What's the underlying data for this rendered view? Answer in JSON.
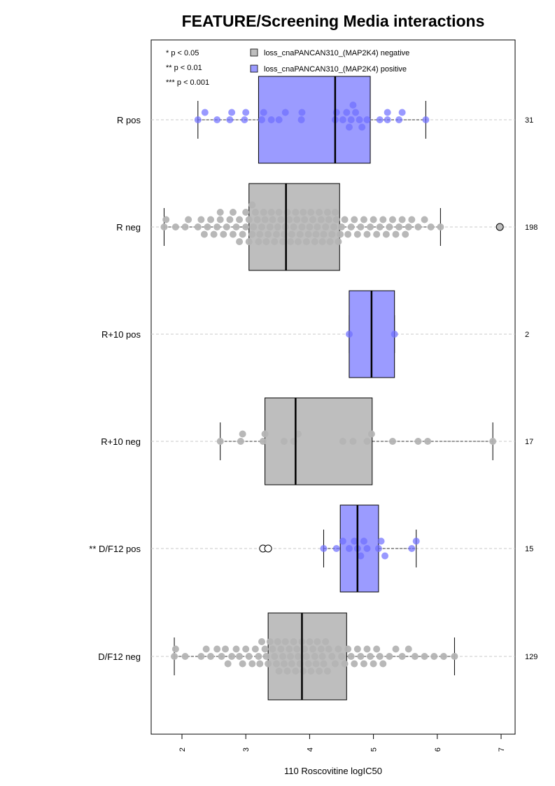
{
  "chart_data": {
    "type": "box",
    "title": "FEATURE/Screening Media interactions",
    "xlabel": "110 Roscovitine logIC50",
    "ylabel": "",
    "xlim": [
      1.5,
      7.2
    ],
    "xticks": [
      "2",
      "3",
      "4",
      "5",
      "6",
      "7"
    ],
    "significance_legend": [
      "* p < 0.05",
      "** p < 0.01",
      "*** p < 0.001"
    ],
    "legend": [
      {
        "label": "loss_cnaPANCAN310_(MAP2K4) negative",
        "color": "#bebebe"
      },
      {
        "label": "loss_cnaPANCAN310_(MAP2K4) positive",
        "color": "#9b9bff"
      }
    ],
    "colors": {
      "negative_box": "#bebebe",
      "positive_box": "#9b9bff",
      "negative_point": "#b4b4b4",
      "positive_point": "#6e6eff"
    },
    "groups": [
      {
        "label": "R pos",
        "n": "31",
        "status": "positive",
        "min": 2.25,
        "q1": 3.2,
        "median": 4.4,
        "q3": 4.95,
        "max": 5.82,
        "points": [
          2.25,
          2.36,
          2.55,
          2.75,
          2.78,
          2.98,
          3.0,
          3.25,
          3.28,
          3.4,
          3.52,
          3.62,
          3.87,
          3.88,
          4.4,
          4.42,
          4.52,
          4.58,
          4.62,
          4.65,
          4.68,
          4.72,
          4.78,
          4.82,
          4.9,
          5.1,
          5.22,
          5.22,
          5.4,
          5.45,
          5.82
        ]
      },
      {
        "label": "R neg",
        "n": "198",
        "status": "negative",
        "min": 1.72,
        "q1": 3.05,
        "median": 3.63,
        "q3": 4.47,
        "max": 6.05,
        "outliers": [
          6.98
        ],
        "points": [
          1.72,
          1.75,
          1.9,
          2.05,
          2.1,
          2.25,
          2.3,
          2.35,
          2.4,
          2.45,
          2.5,
          2.55,
          2.6,
          2.6,
          2.65,
          2.7,
          2.75,
          2.8,
          2.8,
          2.85,
          2.9,
          2.9,
          2.95,
          3.0,
          3.0,
          3.05,
          3.05,
          3.1,
          3.1,
          3.12,
          3.15,
          3.18,
          3.2,
          3.22,
          3.25,
          3.28,
          3.3,
          3.32,
          3.35,
          3.38,
          3.4,
          3.42,
          3.45,
          3.48,
          3.5,
          3.52,
          3.55,
          3.58,
          3.6,
          3.62,
          3.65,
          3.68,
          3.7,
          3.72,
          3.75,
          3.78,
          3.8,
          3.82,
          3.85,
          3.88,
          3.9,
          3.92,
          3.95,
          3.98,
          4.0,
          4.02,
          4.05,
          4.08,
          4.1,
          4.12,
          4.15,
          4.18,
          4.2,
          4.22,
          4.25,
          4.28,
          4.3,
          4.32,
          4.35,
          4.38,
          4.4,
          4.42,
          4.45,
          4.48,
          4.5,
          4.55,
          4.6,
          4.65,
          4.7,
          4.75,
          4.8,
          4.85,
          4.9,
          4.95,
          5.0,
          5.05,
          5.1,
          5.15,
          5.2,
          5.25,
          5.3,
          5.35,
          5.4,
          5.45,
          5.5,
          5.55,
          5.6,
          5.7,
          5.8,
          5.9,
          6.05
        ]
      },
      {
        "label": "R+10 pos",
        "n": "2",
        "status": "positive",
        "min": 4.62,
        "q1": 4.62,
        "median": 4.97,
        "q3": 5.33,
        "max": 5.33,
        "points": [
          4.62,
          5.33
        ]
      },
      {
        "label": "R+10 neg",
        "n": "17",
        "status": "negative",
        "min": 2.6,
        "q1": 3.3,
        "median": 3.78,
        "q3": 4.98,
        "max": 6.87,
        "points": [
          2.6,
          2.92,
          2.95,
          3.27,
          3.3,
          3.6,
          3.75,
          3.82,
          4.52,
          4.68,
          4.9,
          4.97,
          5.3,
          5.7,
          5.85,
          6.87
        ]
      },
      {
        "label": "** D/F12 pos",
        "n": "15",
        "status": "positive",
        "min": 4.22,
        "q1": 4.48,
        "median": 4.75,
        "q3": 5.08,
        "max": 5.67,
        "outliers": [
          3.27,
          3.35
        ],
        "points": [
          4.22,
          4.42,
          4.52,
          4.62,
          4.7,
          4.75,
          4.8,
          4.85,
          4.9,
          5.08,
          5.12,
          5.18,
          5.6,
          5.67
        ]
      },
      {
        "label": "D/F12 neg",
        "n": "129",
        "status": "negative",
        "min": 1.88,
        "q1": 3.35,
        "median": 3.88,
        "q3": 4.58,
        "max": 6.27,
        "points": [
          1.88,
          1.9,
          2.05,
          2.3,
          2.38,
          2.45,
          2.55,
          2.62,
          2.68,
          2.72,
          2.78,
          2.85,
          2.9,
          2.95,
          3.0,
          3.05,
          3.1,
          3.15,
          3.2,
          3.22,
          3.25,
          3.3,
          3.32,
          3.35,
          3.38,
          3.42,
          3.45,
          3.48,
          3.5,
          3.52,
          3.55,
          3.58,
          3.6,
          3.62,
          3.65,
          3.68,
          3.7,
          3.72,
          3.75,
          3.78,
          3.8,
          3.82,
          3.85,
          3.88,
          3.9,
          3.92,
          3.95,
          3.98,
          4.0,
          4.02,
          4.05,
          4.08,
          4.1,
          4.12,
          4.15,
          4.18,
          4.2,
          4.22,
          4.25,
          4.28,
          4.3,
          4.35,
          4.4,
          4.45,
          4.5,
          4.55,
          4.6,
          4.65,
          4.7,
          4.75,
          4.8,
          4.85,
          4.9,
          4.95,
          5.0,
          5.05,
          5.1,
          5.15,
          5.25,
          5.35,
          5.45,
          5.55,
          5.65,
          5.8,
          5.95,
          6.1,
          6.27
        ]
      }
    ]
  }
}
